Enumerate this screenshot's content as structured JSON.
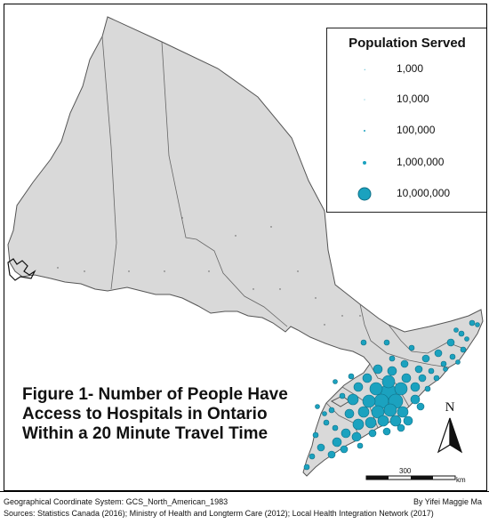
{
  "legend": {
    "title": "Population Served",
    "items": [
      {
        "label": "1,000",
        "value": 1000
      },
      {
        "label": "10,000",
        "value": 10000
      },
      {
        "label": "100,000",
        "value": 100000
      },
      {
        "label": "1,000,000",
        "value": 1000000
      },
      {
        "label": "10,000,000",
        "value": 10000000
      }
    ]
  },
  "title_lines": [
    "Figure 1- Number of People Have",
    "Access to Hospitals in Ontario",
    "Within a 20 Minute Travel Time"
  ],
  "north_arrow": {
    "letter": "N"
  },
  "scale_bar": {
    "value": "300",
    "unit": "km"
  },
  "footer": {
    "coordinate_system": "Geographical Coordinate System: GCS_North_American_1983",
    "author": "By Yifei Maggie Ma",
    "sources": "Sources: Statistics Canada (2016); Ministry of Health and Longterm Care (2012); Local Health Integration Network (2017)"
  },
  "colors": {
    "land": "#d9d9d9",
    "border": "#555555",
    "symbol": "#1ba2bf",
    "symbol_outline": "#0e6f86"
  }
}
